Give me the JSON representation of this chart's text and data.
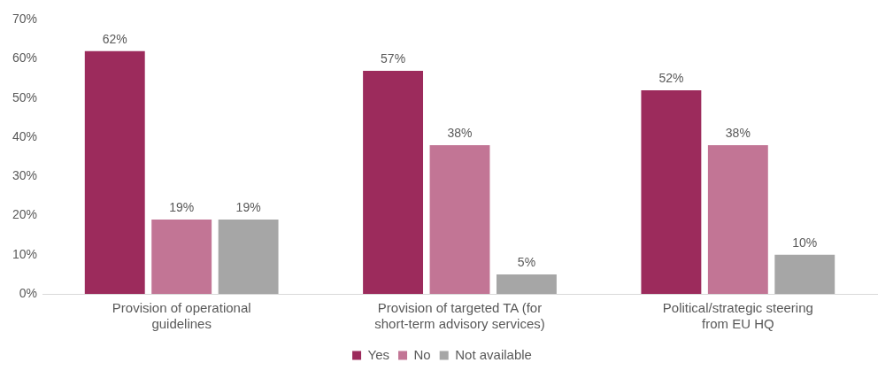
{
  "chart_data": {
    "type": "bar",
    "categories": [
      "Provision of operational guidelines",
      "Provision of targeted TA (for short-term advisory services)",
      "Political/strategic steering from EU HQ"
    ],
    "series": [
      {
        "name": "Yes",
        "color": "#9c2b5c",
        "values": [
          62,
          57,
          52
        ]
      },
      {
        "name": "No",
        "color": "#c27595",
        "values": [
          19,
          38,
          38
        ]
      },
      {
        "name": "Not available",
        "color": "#a6a6a6",
        "values": [
          19,
          5,
          10
        ]
      }
    ],
    "ylim": [
      0,
      70
    ],
    "yticks": [
      {
        "value": 0,
        "label": "0%"
      },
      {
        "value": 10,
        "label": "10%"
      },
      {
        "value": 20,
        "label": "20%"
      },
      {
        "value": 30,
        "label": "30%"
      },
      {
        "value": 40,
        "label": "40%"
      },
      {
        "value": 50,
        "label": "50%"
      },
      {
        "value": 60,
        "label": "60%"
      },
      {
        "value": 70,
        "label": "70%"
      }
    ],
    "value_labels": [
      [
        "62%",
        "57%",
        "52%"
      ],
      [
        "19%",
        "38%",
        "38%"
      ],
      [
        "19%",
        "5%",
        "10%"
      ]
    ],
    "grid": false,
    "legend": "bottom"
  }
}
